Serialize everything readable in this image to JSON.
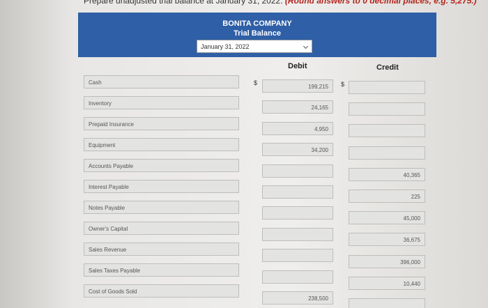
{
  "instruction": {
    "text": "Prepare unadjusted trial balance at January 31, 2022.",
    "note": "(Round answers to 0 decimal places, e.g. 5,275.)"
  },
  "header": {
    "company": "BONITA COMPANY",
    "title": "Trial Balance",
    "date": "January 31, 2022"
  },
  "columns": {
    "debit": "Debit",
    "credit": "Credit"
  },
  "currency": "$",
  "rows": [
    {
      "account": "Cash",
      "debit": "199,215",
      "credit": null
    },
    {
      "account": "Inventory",
      "debit": "24,165",
      "credit": null
    },
    {
      "account": "Prepaid Insurance",
      "debit": "4,950",
      "credit": null
    },
    {
      "account": "Equipment",
      "debit": "34,200",
      "credit": null
    },
    {
      "account": "Accounts Payable",
      "debit": null,
      "credit": "40,365"
    },
    {
      "account": "Interest Payable",
      "debit": null,
      "credit": "225"
    },
    {
      "account": "Notes Payable",
      "debit": null,
      "credit": "45,000"
    },
    {
      "account": "Owner's Capital",
      "debit": null,
      "credit": "36,675"
    },
    {
      "account": "Sales Revenue",
      "debit": null,
      "credit": "396,000"
    },
    {
      "account": "Sales Taxes Payable",
      "debit": null,
      "credit": "10,440"
    },
    {
      "account": "Cost of Goods Sold",
      "debit": "238,500",
      "credit": null
    }
  ]
}
